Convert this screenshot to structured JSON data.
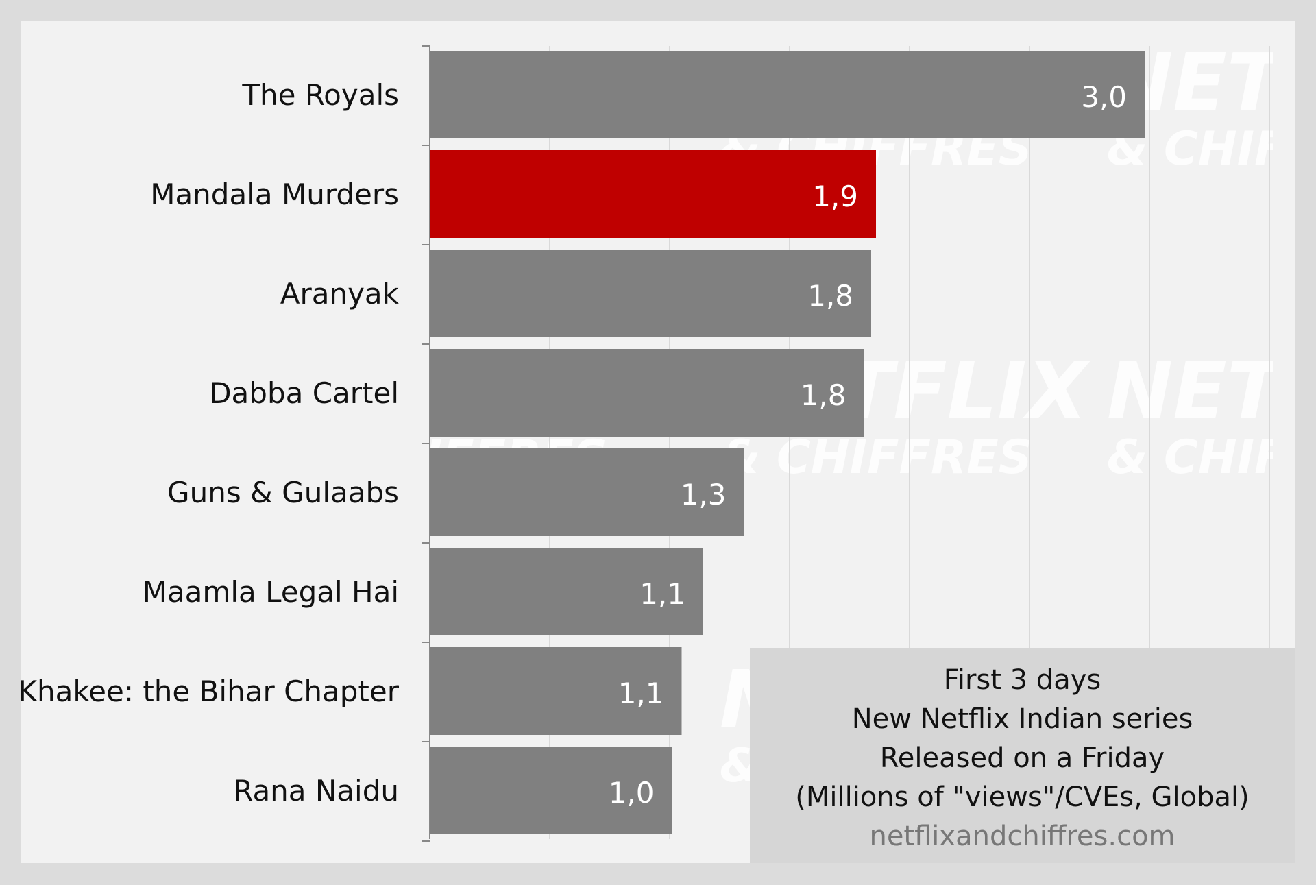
{
  "chart_data": {
    "type": "bar",
    "orientation": "horizontal",
    "categories": [
      "The Royals",
      "Mandala Murders",
      "Aranyak",
      "Dabba Cartel",
      "Guns & Gulaabs",
      "Maamla Legal Hai",
      "Khakee: the Bihar Chapter",
      "Rana Naidu"
    ],
    "values": [
      2.98,
      1.86,
      1.84,
      1.81,
      1.31,
      1.14,
      1.05,
      1.01
    ],
    "value_labels": [
      "3,0",
      "1,9",
      "1,8",
      "1,8",
      "1,3",
      "1,1",
      "1,1",
      "1,0"
    ],
    "highlight": "Mandala Murders",
    "xlim": [
      0,
      3.5
    ],
    "grid": true,
    "colors": {
      "bar": "#808080",
      "highlight": "#bf0000",
      "background": "#f2f2f2",
      "frame": "#dcdcdc",
      "grid": "#d9d9d9"
    }
  },
  "caption": {
    "lines": [
      "First 3 days",
      "New Netflix Indian series",
      "Released on a Friday",
      "(Millions of \"views\"/CVEs, Global)"
    ],
    "source": "netflixandchiffres.com"
  },
  "watermark": {
    "brand": "NETFLIX",
    "tagline": "& CHIFFRES"
  }
}
